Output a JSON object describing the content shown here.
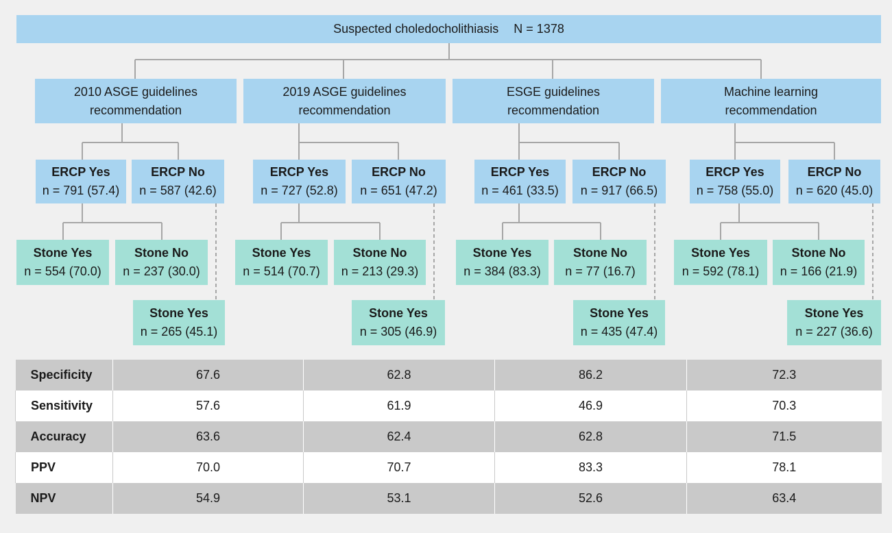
{
  "root": {
    "label": "Suspected choledocholithiasis",
    "n": "N = 1378"
  },
  "branches": [
    {
      "l1": "2010 ASGE guidelines",
      "l2": "recommendation",
      "ercp_yes_label": "ERCP Yes",
      "ercp_yes_n": "n = 791 (57.4)",
      "ercp_no_label": "ERCP No",
      "ercp_no_n": "n = 587 (42.6)",
      "stone_yes_label": "Stone Yes",
      "stone_yes_n": "n = 554 (70.0)",
      "stone_no_label": "Stone No",
      "stone_no_n": "n = 237 (30.0)",
      "missed_label": "Stone Yes",
      "missed_n": "n = 265 (45.1)"
    },
    {
      "l1": "2019 ASGE guidelines",
      "l2": "recommendation",
      "ercp_yes_label": "ERCP Yes",
      "ercp_yes_n": "n = 727 (52.8)",
      "ercp_no_label": "ERCP No",
      "ercp_no_n": "n = 651 (47.2)",
      "stone_yes_label": "Stone Yes",
      "stone_yes_n": "n = 514 (70.7)",
      "stone_no_label": "Stone No",
      "stone_no_n": "n = 213 (29.3)",
      "missed_label": "Stone Yes",
      "missed_n": "n = 305 (46.9)"
    },
    {
      "l1": "ESGE guidelines",
      "l2": "recommendation",
      "ercp_yes_label": "ERCP Yes",
      "ercp_yes_n": "n = 461 (33.5)",
      "ercp_no_label": "ERCP No",
      "ercp_no_n": "n = 917 (66.5)",
      "stone_yes_label": "Stone Yes",
      "stone_yes_n": "n = 384 (83.3)",
      "stone_no_label": "Stone No",
      "stone_no_n": "n = 77 (16.7)",
      "missed_label": "Stone Yes",
      "missed_n": "n = 435 (47.4)"
    },
    {
      "l1": "Machine learning",
      "l2": "recommendation",
      "ercp_yes_label": "ERCP Yes",
      "ercp_yes_n": "n = 758 (55.0)",
      "ercp_no_label": "ERCP No",
      "ercp_no_n": "n = 620 (45.0)",
      "stone_yes_label": "Stone Yes",
      "stone_yes_n": "n = 592 (78.1)",
      "stone_no_label": "Stone No",
      "stone_no_n": "n = 166 (21.9)",
      "missed_label": "Stone Yes",
      "missed_n": "n = 227 (36.6)"
    }
  ],
  "stats": [
    {
      "label": "Specificity",
      "values": [
        "67.6",
        "62.8",
        "86.2",
        "72.3"
      ]
    },
    {
      "label": "Sensitivity",
      "values": [
        "57.6",
        "61.9",
        "46.9",
        "70.3"
      ]
    },
    {
      "label": "Accuracy",
      "values": [
        "63.6",
        "62.4",
        "62.8",
        "71.5"
      ]
    },
    {
      "label": "PPV",
      "values": [
        "70.0",
        "70.7",
        "83.3",
        "78.1"
      ]
    },
    {
      "label": "NPV",
      "values": [
        "54.9",
        "53.1",
        "52.6",
        "63.4"
      ]
    }
  ],
  "colors": {
    "header_blue": "#a8d4f0",
    "stone_green": "#a3e0d6",
    "line_gray": "#a6a6a6",
    "table_gray": "#c9c9c9"
  }
}
